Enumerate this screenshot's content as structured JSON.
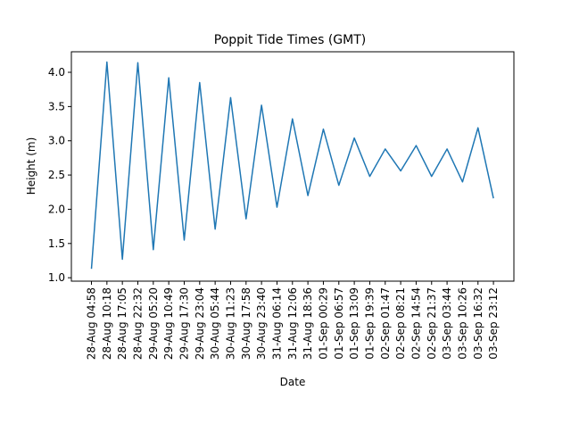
{
  "chart_data": {
    "type": "line",
    "title": "Poppit Tide Times (GMT)",
    "xlabel": "Date",
    "ylabel": "Height (m)",
    "ylim": [
      0.95,
      4.3
    ],
    "yticks": [
      1.0,
      1.5,
      2.0,
      2.5,
      3.0,
      3.5,
      4.0
    ],
    "ytick_labels": [
      "1.0",
      "1.5",
      "2.0",
      "2.5",
      "3.0",
      "3.5",
      "4.0"
    ],
    "grid": false,
    "line_color": "#1f77b4",
    "series": [
      {
        "x": [
          "28-Aug 04:58",
          "28-Aug 10:18",
          "28-Aug 17:05",
          "28-Aug 22:32",
          "29-Aug 05:20",
          "29-Aug 10:49",
          "29-Aug 17:30",
          "29-Aug 23:04",
          "30-Aug 05:44",
          "30-Aug 11:23",
          "30-Aug 17:58",
          "30-Aug 23:40",
          "31-Aug 06:14",
          "31-Aug 12:06",
          "31-Aug 18:36",
          "01-Sep 00:29",
          "01-Sep 06:57",
          "01-Sep 13:09",
          "01-Sep 19:39",
          "02-Sep 01:47",
          "02-Sep 08:21",
          "02-Sep 14:54",
          "02-Sep 21:37",
          "03-Sep 03:44",
          "03-Sep 10:26",
          "03-Sep 16:32",
          "03-Sep 23:12"
        ],
        "values": [
          1.13,
          4.15,
          1.27,
          4.14,
          1.41,
          3.92,
          1.55,
          3.85,
          1.71,
          3.63,
          1.86,
          3.52,
          2.03,
          3.32,
          2.2,
          3.17,
          2.35,
          3.04,
          2.48,
          2.88,
          2.56,
          2.93,
          2.48,
          2.88,
          2.4,
          3.19,
          2.16
        ]
      }
    ]
  }
}
